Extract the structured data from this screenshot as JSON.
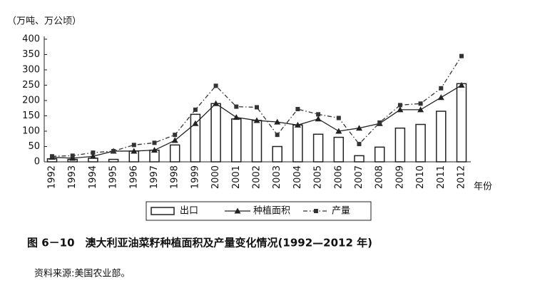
{
  "chart_data": {
    "type": "combo",
    "title": "图 6－10　澳大利亚油菜籽种植面积及产量变化情况(1992—2012 年)",
    "y_label": "（万吨、万公顷）",
    "x_label": "年份",
    "source": "资料来源:美国农业部。",
    "categories": [
      "1992",
      "1993",
      "1994",
      "1995",
      "1996",
      "1997",
      "1998",
      "1999",
      "2000",
      "2001",
      "2002",
      "2003",
      "2004",
      "2005",
      "2006",
      "2007",
      "2008",
      "2009",
      "2010",
      "2011",
      "2012"
    ],
    "series": [
      {
        "name": "出口",
        "type": "bar",
        "color": "#222222",
        "values": [
          10,
          8,
          12,
          8,
          35,
          38,
          55,
          155,
          190,
          140,
          135,
          50,
          120,
          90,
          80,
          20,
          48,
          110,
          122,
          165,
          255
        ]
      },
      {
        "name": "种植面积",
        "type": "line",
        "color": "#222222",
        "marker": "triangle",
        "dash": "solid",
        "values": [
          15,
          12,
          18,
          35,
          35,
          38,
          70,
          125,
          190,
          145,
          135,
          130,
          120,
          140,
          100,
          110,
          125,
          170,
          170,
          210,
          250
        ]
      },
      {
        "name": "产量",
        "type": "line",
        "color": "#333333",
        "marker": "square",
        "dash": "dashdot",
        "values": [
          18,
          20,
          30,
          35,
          55,
          62,
          88,
          170,
          248,
          180,
          178,
          88,
          172,
          155,
          143,
          58,
          128,
          185,
          190,
          240,
          345
        ]
      }
    ],
    "ylim": [
      0,
      400
    ],
    "yticks": [
      0,
      50,
      100,
      150,
      200,
      250,
      300,
      350,
      400
    ],
    "grid": false
  }
}
